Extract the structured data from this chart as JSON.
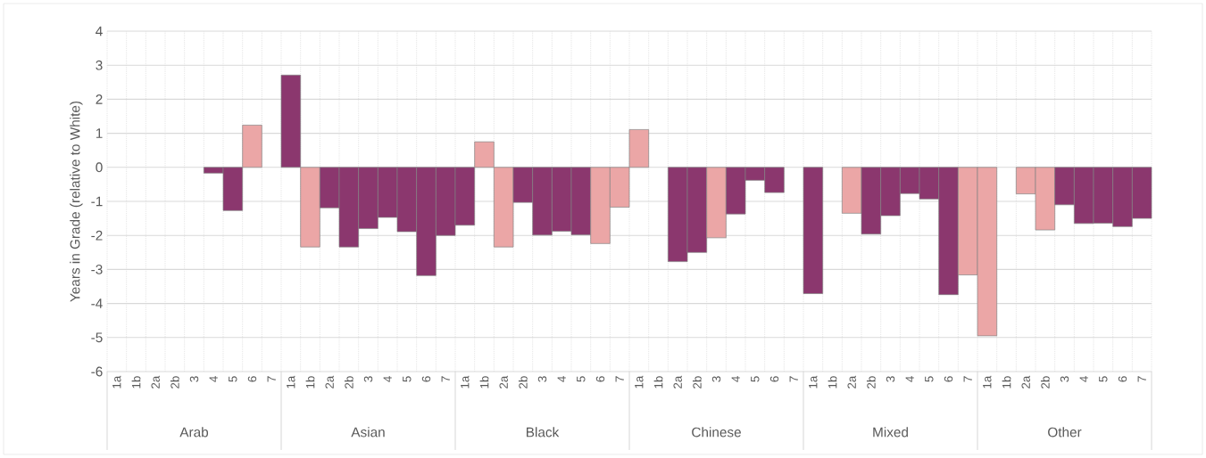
{
  "chart_data": {
    "type": "bar",
    "ylabel": "Years in Grade (relative to White)",
    "categories": [
      "1a",
      "1b",
      "2a",
      "2b",
      "3",
      "4",
      "5",
      "6",
      "7",
      "1a",
      "1b",
      "2a",
      "2b",
      "3",
      "4",
      "5",
      "6",
      "7",
      "1a",
      "1b",
      "2a",
      "2b",
      "3",
      "4",
      "5",
      "6",
      "7",
      "1a",
      "1b",
      "2a",
      "2b",
      "3",
      "4",
      "5",
      "6",
      "7",
      "1a",
      "1b",
      "2a",
      "2b",
      "3",
      "4",
      "5",
      "6",
      "7",
      "1a",
      "1b",
      "2a",
      "2b",
      "3",
      "4",
      "5",
      "6",
      "7"
    ],
    "values": [
      null,
      null,
      null,
      null,
      null,
      -0.17,
      -1.27,
      1.24,
      null,
      2.71,
      -2.34,
      -1.19,
      -2.34,
      -1.8,
      -1.47,
      -1.89,
      -3.18,
      -2.0,
      -1.7,
      0.75,
      -2.34,
      -1.03,
      -1.99,
      -1.88,
      -1.98,
      -2.24,
      -1.17,
      1.11,
      null,
      -2.77,
      -2.5,
      -2.07,
      -1.37,
      -0.38,
      -0.74,
      null,
      -3.71,
      null,
      -1.35,
      -1.96,
      -1.42,
      -0.77,
      -0.93,
      -3.74,
      -3.16,
      -4.95,
      null,
      -0.78,
      -1.84,
      -1.1,
      -1.65,
      -1.64,
      -1.74,
      -1.5
    ],
    "colors": [
      null,
      null,
      null,
      null,
      null,
      "#8b376e",
      "#8b376e",
      "#eba6a6",
      null,
      "#8b376e",
      "#eba6a6",
      "#8b376e",
      "#8b376e",
      "#8b376e",
      "#8b376e",
      "#8b376e",
      "#8b376e",
      "#8b376e",
      "#8b376e",
      "#eba6a6",
      "#eba6a6",
      "#8b376e",
      "#8b376e",
      "#8b376e",
      "#8b376e",
      "#eba6a6",
      "#eba6a6",
      "#eba6a6",
      null,
      "#8b376e",
      "#8b376e",
      "#eba6a6",
      "#8b376e",
      "#8b376e",
      "#8b376e",
      null,
      "#8b376e",
      null,
      "#eba6a6",
      "#8b376e",
      "#8b376e",
      "#8b376e",
      "#8b376e",
      "#8b376e",
      "#eba6a6",
      "#eba6a6",
      null,
      "#eba6a6",
      "#eba6a6",
      "#8b376e",
      "#8b376e",
      "#8b376e",
      "#8b376e",
      "#8b376e"
    ],
    "annotations": [
      "Arab",
      "Asian",
      "Black",
      "Chinese",
      "Mixed",
      "Other"
    ],
    "ylim": [
      -6,
      4
    ],
    "yticks": [
      -6,
      -5,
      -4,
      -3,
      -2,
      -1,
      0,
      1,
      2,
      3,
      4
    ],
    "grid": true
  }
}
